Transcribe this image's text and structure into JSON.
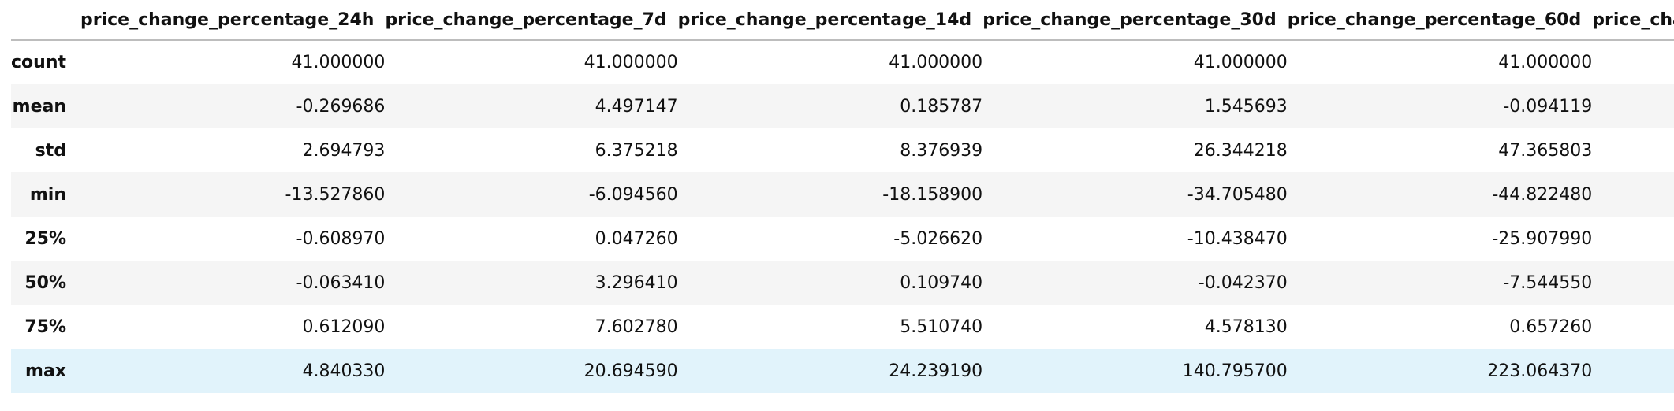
{
  "table": {
    "columns": [
      "price_change_percentage_24h",
      "price_change_percentage_7d",
      "price_change_percentage_14d",
      "price_change_percentage_30d",
      "price_change_percentage_60d",
      "price_change_perce"
    ],
    "rows": [
      {
        "label": "count",
        "values": [
          "41.000000",
          "41.000000",
          "41.000000",
          "41.000000",
          "41.000000",
          ""
        ]
      },
      {
        "label": "mean",
        "values": [
          "-0.269686",
          "4.497147",
          "0.185787",
          "1.545693",
          "-0.094119",
          ""
        ]
      },
      {
        "label": "std",
        "values": [
          "2.694793",
          "6.375218",
          "8.376939",
          "26.344218",
          "47.365803",
          ""
        ]
      },
      {
        "label": "min",
        "values": [
          "-13.527860",
          "-6.094560",
          "-18.158900",
          "-34.705480",
          "-44.822480",
          ""
        ]
      },
      {
        "label": "25%",
        "values": [
          "-0.608970",
          "0.047260",
          "-5.026620",
          "-10.438470",
          "-25.907990",
          ""
        ]
      },
      {
        "label": "50%",
        "values": [
          "-0.063410",
          "3.296410",
          "0.109740",
          "-0.042370",
          "-7.544550",
          ""
        ]
      },
      {
        "label": "75%",
        "values": [
          "0.612090",
          "7.602780",
          "5.510740",
          "4.578130",
          "0.657260",
          ""
        ]
      },
      {
        "label": "max",
        "values": [
          "4.840330",
          "20.694590",
          "24.239190",
          "140.795700",
          "223.064370",
          ""
        ]
      }
    ],
    "highlighted_row": "max",
    "colors": {
      "stripe": "#f5f5f5",
      "hover": "#e1f3fb",
      "header_rule": "#bdbdbd"
    }
  }
}
